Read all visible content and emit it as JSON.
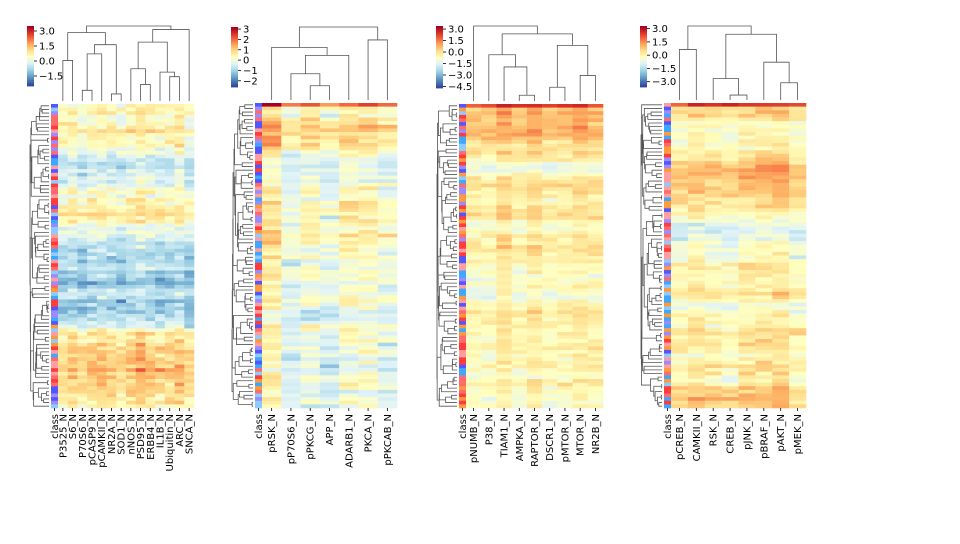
{
  "chart_data": [
    {
      "type": "heatmap",
      "columns": [
        "class",
        "P3525_N",
        "S6_N",
        "P70S6_N",
        "pCASP9_N",
        "pCAMKII_N",
        "NR2A_N",
        "SOD1_N",
        "nNOS_N",
        "PSD95_N",
        "ERBB4_N",
        "IL1B_N",
        "Ubiquitin_N",
        "ARC_N",
        "SNCA_N"
      ],
      "colorbar_ticks": [
        "3.0",
        "1.5",
        "0.0",
        "−1.5"
      ],
      "colorbar_range": [
        -2.5,
        3.5
      ],
      "row_count": 84
    },
    {
      "type": "heatmap",
      "columns": [
        "class",
        "pRSK_N",
        "pP70S6_N",
        "pPKCG_N",
        "APP_N",
        "ADARB1_N",
        "PKCA_N",
        "pPKCAB_N"
      ],
      "colorbar_ticks": [
        "3",
        "2",
        "1",
        "0",
        "−1",
        "−2"
      ],
      "colorbar_range": [
        -2.6,
        3.2
      ],
      "row_count": 84
    },
    {
      "type": "heatmap",
      "columns": [
        "class",
        "pNUMB_N",
        "P38_N",
        "TIAM1_N",
        "AMPKA_N",
        "RAPTOR_N",
        "DSCR1_N",
        "pMTOR_N",
        "MTOR_N",
        "NR2B_N"
      ],
      "colorbar_ticks": [
        "3.0",
        "1.5",
        "0.0",
        "−1.5",
        "−3.0",
        "−4.5"
      ],
      "colorbar_range": [
        -4.7,
        3.4
      ],
      "row_count": 84
    },
    {
      "type": "heatmap",
      "columns": [
        "class",
        "pCREB_N",
        "CAMKII_N",
        "RSK_N",
        "CREB_N",
        "pJNK_N",
        "pBRAF_N",
        "pAKT_N",
        "pMEK_N"
      ],
      "colorbar_ticks": [
        "3.0",
        "1.5",
        "0.0",
        "−1.5",
        "−3.0"
      ],
      "colorbar_range": [
        -3.6,
        3.3
      ],
      "row_count": 84
    }
  ],
  "colors": {
    "diverging": [
      "#313695",
      "#4575b4",
      "#74add1",
      "#abd9e9",
      "#e0f3f8",
      "#ffffbf",
      "#fee090",
      "#fdae61",
      "#f46d43",
      "#d73027",
      "#a50026"
    ],
    "class": [
      "#ff3b3b",
      "#ff9ea0",
      "#3fa7ff",
      "#5555ff",
      "#ff9a3c",
      "#9a8cff",
      "#8ecbff",
      "#ff6b6b"
    ],
    "dendrogram": "#555555"
  }
}
